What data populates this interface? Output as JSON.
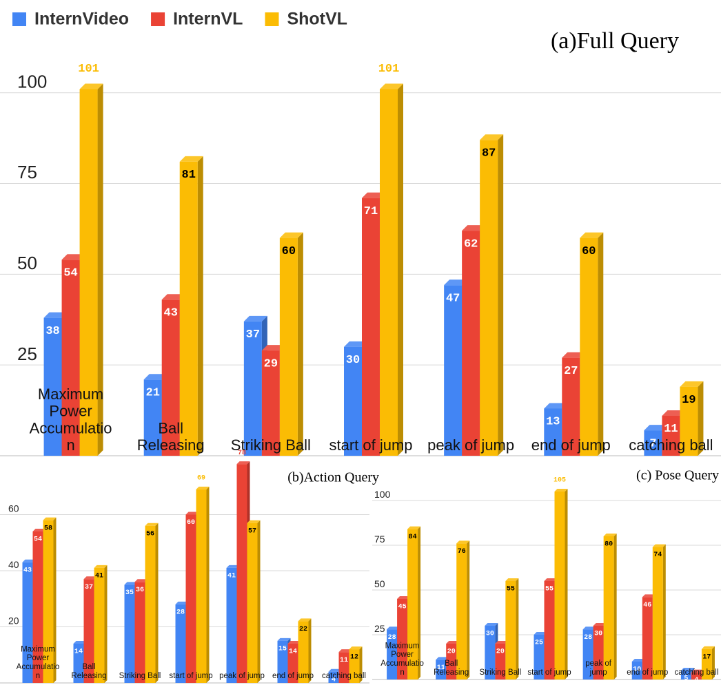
{
  "chart_data": [
    {
      "type": "bar",
      "title": "(a)Full Query",
      "categories": [
        "Maximum Power Accumulation",
        "Ball Releasing",
        "Striking Ball",
        "start of jump",
        "peak of jump",
        "end of jump",
        "catching ball"
      ],
      "series": [
        {
          "name": "InternVideo",
          "color": "#4285f4",
          "values": [
            38,
            21,
            37,
            30,
            47,
            13,
            7
          ]
        },
        {
          "name": "InternVL",
          "color": "#ea4335",
          "values": [
            54,
            43,
            29,
            71,
            62,
            27,
            11
          ]
        },
        {
          "name": "ShotVL",
          "color": "#fbbc04",
          "values": [
            101,
            81,
            60,
            101,
            87,
            60,
            19
          ]
        }
      ],
      "ylim": [
        0,
        110
      ],
      "yticks": [
        25,
        50,
        75,
        100
      ],
      "grid": true,
      "legend": "top-left"
    },
    {
      "type": "bar",
      "title": "(b)Action Query",
      "categories": [
        "Maximum Power Accumulation",
        "Ball Releasing",
        "Striking Ball",
        "start of jump",
        "peak of jump",
        "end of jump",
        "catching ball"
      ],
      "series": [
        {
          "color": "#4285f4",
          "values": [
            43,
            14,
            35,
            28,
            41,
            15,
            4
          ]
        },
        {
          "color": "#ea4335",
          "values": [
            54,
            37,
            36,
            60,
            78,
            14,
            11
          ]
        },
        {
          "color": "#fbbc04",
          "values": [
            58,
            41,
            56,
            69,
            57,
            22,
            12
          ]
        }
      ],
      "ylim": [
        0,
        80
      ],
      "yticks": [
        20,
        40,
        60
      ],
      "grid": true
    },
    {
      "type": "bar",
      "title": "(c) Pose Query",
      "categories": [
        "Maximum Power Accumulation",
        "Ball Releasing",
        "Striking Ball",
        "start of jump",
        "peak of jump",
        "end of jump",
        "catching ball"
      ],
      "series": [
        {
          "color": "#4285f4",
          "values": [
            28,
            11,
            30,
            25,
            28,
            10,
            5
          ]
        },
        {
          "color": "#ea4335",
          "values": [
            45,
            20,
            20,
            55,
            30,
            46,
            4
          ]
        },
        {
          "color": "#fbbc04",
          "values": [
            84,
            76,
            55,
            105,
            80,
            74,
            17
          ]
        }
      ],
      "ylim": [
        0,
        110
      ],
      "yticks": [
        25,
        50,
        75,
        100
      ],
      "grid": true
    }
  ]
}
